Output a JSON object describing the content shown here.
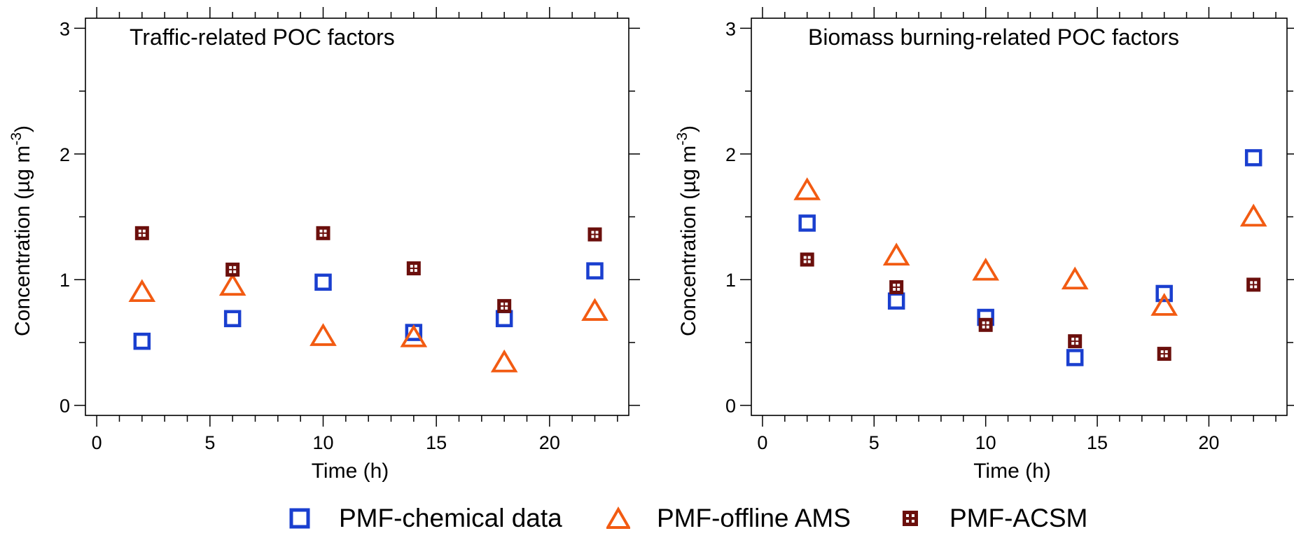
{
  "legend": [
    {
      "label": "PMF-chemical data",
      "marker": "square",
      "color": "#1a3fcf"
    },
    {
      "label": "PMF-offline AMS",
      "marker": "triangle",
      "color": "#f25b12"
    },
    {
      "label": "PMF-ACSM",
      "marker": "square-grid",
      "color": "#6b0f0c"
    }
  ],
  "chart_data": [
    {
      "type": "scatter",
      "title": "Traffic-related POC factors",
      "xlabel": "Time (h)",
      "ylabel": "Concentration (µg m",
      "ylabel_sup": "-3",
      "ylabel_close": ")",
      "xlim": [
        -0.5,
        23.5
      ],
      "ylim": [
        -0.08,
        3.08
      ],
      "xticks": [
        0,
        5,
        10,
        15,
        20
      ],
      "yticks": [
        0,
        1,
        2,
        3
      ],
      "x_minor_step": 1,
      "y_minor_step": 0.5,
      "series": [
        {
          "name": "PMF-chemical data",
          "color": "#1a3fcf",
          "marker": "square",
          "x": [
            2,
            6,
            10,
            14,
            18,
            22
          ],
          "y": [
            0.51,
            0.69,
            0.98,
            0.58,
            0.69,
            1.07
          ]
        },
        {
          "name": "PMF-offline AMS",
          "color": "#f25b12",
          "marker": "triangle",
          "x": [
            2,
            6,
            10,
            14,
            18,
            22
          ],
          "y": [
            0.9,
            0.95,
            0.55,
            0.54,
            0.34,
            0.75
          ]
        },
        {
          "name": "PMF-ACSM",
          "color": "#6b0f0c",
          "marker": "square-grid",
          "x": [
            2,
            6,
            10,
            14,
            18,
            22
          ],
          "y": [
            1.37,
            1.08,
            1.37,
            1.09,
            0.79,
            1.36
          ]
        }
      ]
    },
    {
      "type": "scatter",
      "title": "Biomass burning-related POC factors",
      "xlabel": "Time (h)",
      "ylabel": "Concentration (µg m",
      "ylabel_sup": "-3",
      "ylabel_close": ")",
      "xlim": [
        -0.5,
        23.5
      ],
      "ylim": [
        -0.08,
        3.08
      ],
      "xticks": [
        0,
        5,
        10,
        15,
        20
      ],
      "yticks": [
        0,
        1,
        2,
        3
      ],
      "x_minor_step": 1,
      "y_minor_step": 0.5,
      "series": [
        {
          "name": "PMF-chemical data",
          "color": "#1a3fcf",
          "marker": "square",
          "x": [
            2,
            6,
            10,
            14,
            18,
            22
          ],
          "y": [
            1.45,
            0.83,
            0.7,
            0.38,
            0.89,
            1.97
          ]
        },
        {
          "name": "PMF-offline AMS",
          "color": "#f25b12",
          "marker": "triangle",
          "x": [
            2,
            6,
            10,
            14,
            18,
            22
          ],
          "y": [
            1.71,
            1.19,
            1.07,
            1.0,
            0.79,
            1.5
          ]
        },
        {
          "name": "PMF-ACSM",
          "color": "#6b0f0c",
          "marker": "square-grid",
          "x": [
            2,
            6,
            10,
            14,
            18,
            22
          ],
          "y": [
            1.16,
            0.94,
            0.64,
            0.51,
            0.41,
            0.96
          ]
        }
      ]
    }
  ]
}
